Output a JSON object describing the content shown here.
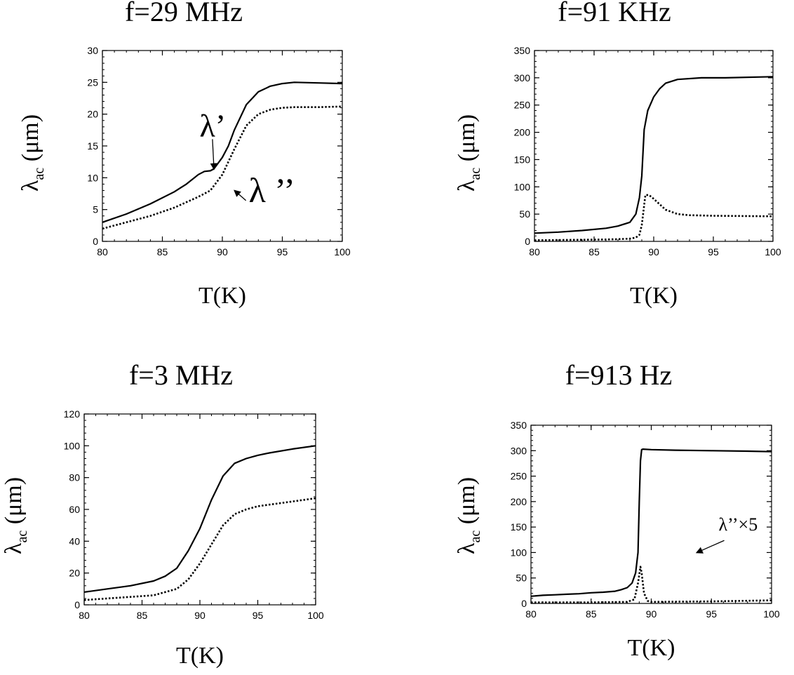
{
  "chart_data": [
    {
      "type": "line",
      "title": "f=29 MHz",
      "xlabel": "T(K)",
      "ylabel_main": "λ",
      "ylabel_sub": "ac",
      "ylabel_unit": " (μm)",
      "xlim": [
        80,
        100
      ],
      "ylim": [
        0,
        30
      ],
      "xticks": [
        80,
        85,
        90,
        95,
        100
      ],
      "yticks": [
        0,
        5,
        10,
        15,
        20,
        25,
        30
      ],
      "series": [
        {
          "style": "solid",
          "x": [
            80,
            82,
            84,
            86,
            87,
            88,
            88.5,
            89,
            89.3,
            90,
            90.5,
            91,
            92,
            93,
            94,
            95,
            96,
            98,
            100
          ],
          "y": [
            3,
            4.3,
            5.9,
            7.8,
            9,
            10.5,
            11,
            11.1,
            11.4,
            13.2,
            15,
            17.5,
            21.5,
            23.5,
            24.4,
            24.8,
            25,
            24.9,
            24.8
          ]
        },
        {
          "style": "dotted",
          "x": [
            80,
            82,
            84,
            86,
            88,
            89,
            90,
            91,
            92,
            93,
            94,
            95,
            96,
            98,
            100
          ],
          "y": [
            2,
            3,
            4,
            5.3,
            7,
            8,
            10.5,
            14.5,
            18.2,
            20,
            20.7,
            21,
            21.1,
            21.1,
            21.2
          ]
        }
      ],
      "annotations": [
        {
          "text": "λ’",
          "x": 88.1,
          "y": 16.5,
          "arrow_to": [
            89.3,
            11.4
          ]
        },
        {
          "text": "λ ’’",
          "x": 92.2,
          "y": 6.2
        }
      ]
    },
    {
      "type": "line",
      "title": "f=91 KHz",
      "xlabel": "T(K)",
      "ylabel_main": "λ",
      "ylabel_sub": "ac",
      "ylabel_unit": " (μm)",
      "xlim": [
        80,
        100
      ],
      "ylim": [
        0,
        350
      ],
      "xticks": [
        80,
        85,
        90,
        95,
        100
      ],
      "yticks": [
        0,
        50,
        100,
        150,
        200,
        250,
        300,
        350
      ],
      "series": [
        {
          "style": "solid",
          "x": [
            80,
            82,
            84,
            86,
            87,
            88,
            88.5,
            88.8,
            89,
            89.2,
            89.5,
            90,
            90.5,
            91,
            92,
            94,
            96,
            100
          ],
          "y": [
            15,
            17,
            20,
            24,
            28,
            35,
            50,
            80,
            120,
            205,
            240,
            265,
            280,
            290,
            297,
            300,
            300,
            302
          ]
        },
        {
          "style": "dotted",
          "x": [
            80,
            84,
            86,
            87,
            88,
            88.5,
            88.8,
            89,
            89.3,
            89.6,
            90,
            90.5,
            91,
            92,
            93,
            95,
            100
          ],
          "y": [
            2,
            3,
            3.5,
            4,
            5,
            7,
            12,
            30,
            85,
            85,
            78,
            68,
            58,
            50,
            48,
            47,
            46
          ]
        }
      ],
      "annotations": []
    },
    {
      "type": "line",
      "title": "f=3 MHz",
      "xlabel": "T(K)",
      "ylabel_main": "λ",
      "ylabel_sub": "ac",
      "ylabel_unit": " (μm)",
      "xlim": [
        80,
        100
      ],
      "ylim": [
        0,
        120
      ],
      "xticks": [
        80,
        85,
        90,
        95,
        100
      ],
      "yticks": [
        0,
        20,
        40,
        60,
        80,
        100,
        120
      ],
      "series": [
        {
          "style": "solid",
          "x": [
            80,
            82,
            84,
            86,
            87,
            88,
            89,
            90,
            91,
            92,
            93,
            94,
            95,
            96,
            98,
            100
          ],
          "y": [
            8,
            10,
            12,
            15,
            18,
            23,
            34,
            48,
            66,
            81,
            89,
            92,
            94,
            95.5,
            98,
            100
          ]
        },
        {
          "style": "dotted",
          "x": [
            80,
            82,
            84,
            86,
            88,
            89,
            90,
            91,
            92,
            93,
            94,
            95,
            96,
            98,
            100
          ],
          "y": [
            3,
            4,
            5,
            6,
            10,
            16,
            26,
            38,
            50,
            57,
            60,
            62,
            63,
            65,
            67
          ]
        }
      ],
      "annotations": []
    },
    {
      "type": "line",
      "title": "f=913 Hz",
      "xlabel": "T(K)",
      "ylabel_main": "λ",
      "ylabel_sub": "ac",
      "ylabel_unit": " (μm)",
      "xlim": [
        80,
        100
      ],
      "ylim": [
        0,
        350
      ],
      "xticks": [
        80,
        85,
        90,
        95,
        100
      ],
      "yticks": [
        0,
        50,
        100,
        150,
        200,
        250,
        300,
        350
      ],
      "series": [
        {
          "style": "solid",
          "x": [
            80,
            81,
            82,
            83,
            84,
            85,
            86,
            87,
            87.5,
            88,
            88.4,
            88.7,
            88.9,
            89,
            89.1,
            89.2,
            89.3,
            90,
            92,
            95,
            98,
            100
          ],
          "y": [
            14,
            16,
            17,
            18,
            19,
            21,
            22,
            24,
            27,
            31,
            40,
            60,
            100,
            200,
            280,
            302,
            303,
            302,
            301,
            300,
            299,
            298
          ]
        },
        {
          "style": "dotted",
          "x": [
            80,
            85,
            88,
            88.6,
            88.9,
            89.1,
            89.2,
            89.4,
            89.7,
            90,
            95,
            100
          ],
          "y": [
            2,
            2,
            3,
            8,
            40,
            72,
            60,
            20,
            5,
            3,
            4,
            6
          ]
        }
      ],
      "annotations": [
        {
          "text": "λ’’×5",
          "x": 95.6,
          "y": 143,
          "arrow_to": [
            93.8,
            100
          ]
        }
      ]
    }
  ]
}
